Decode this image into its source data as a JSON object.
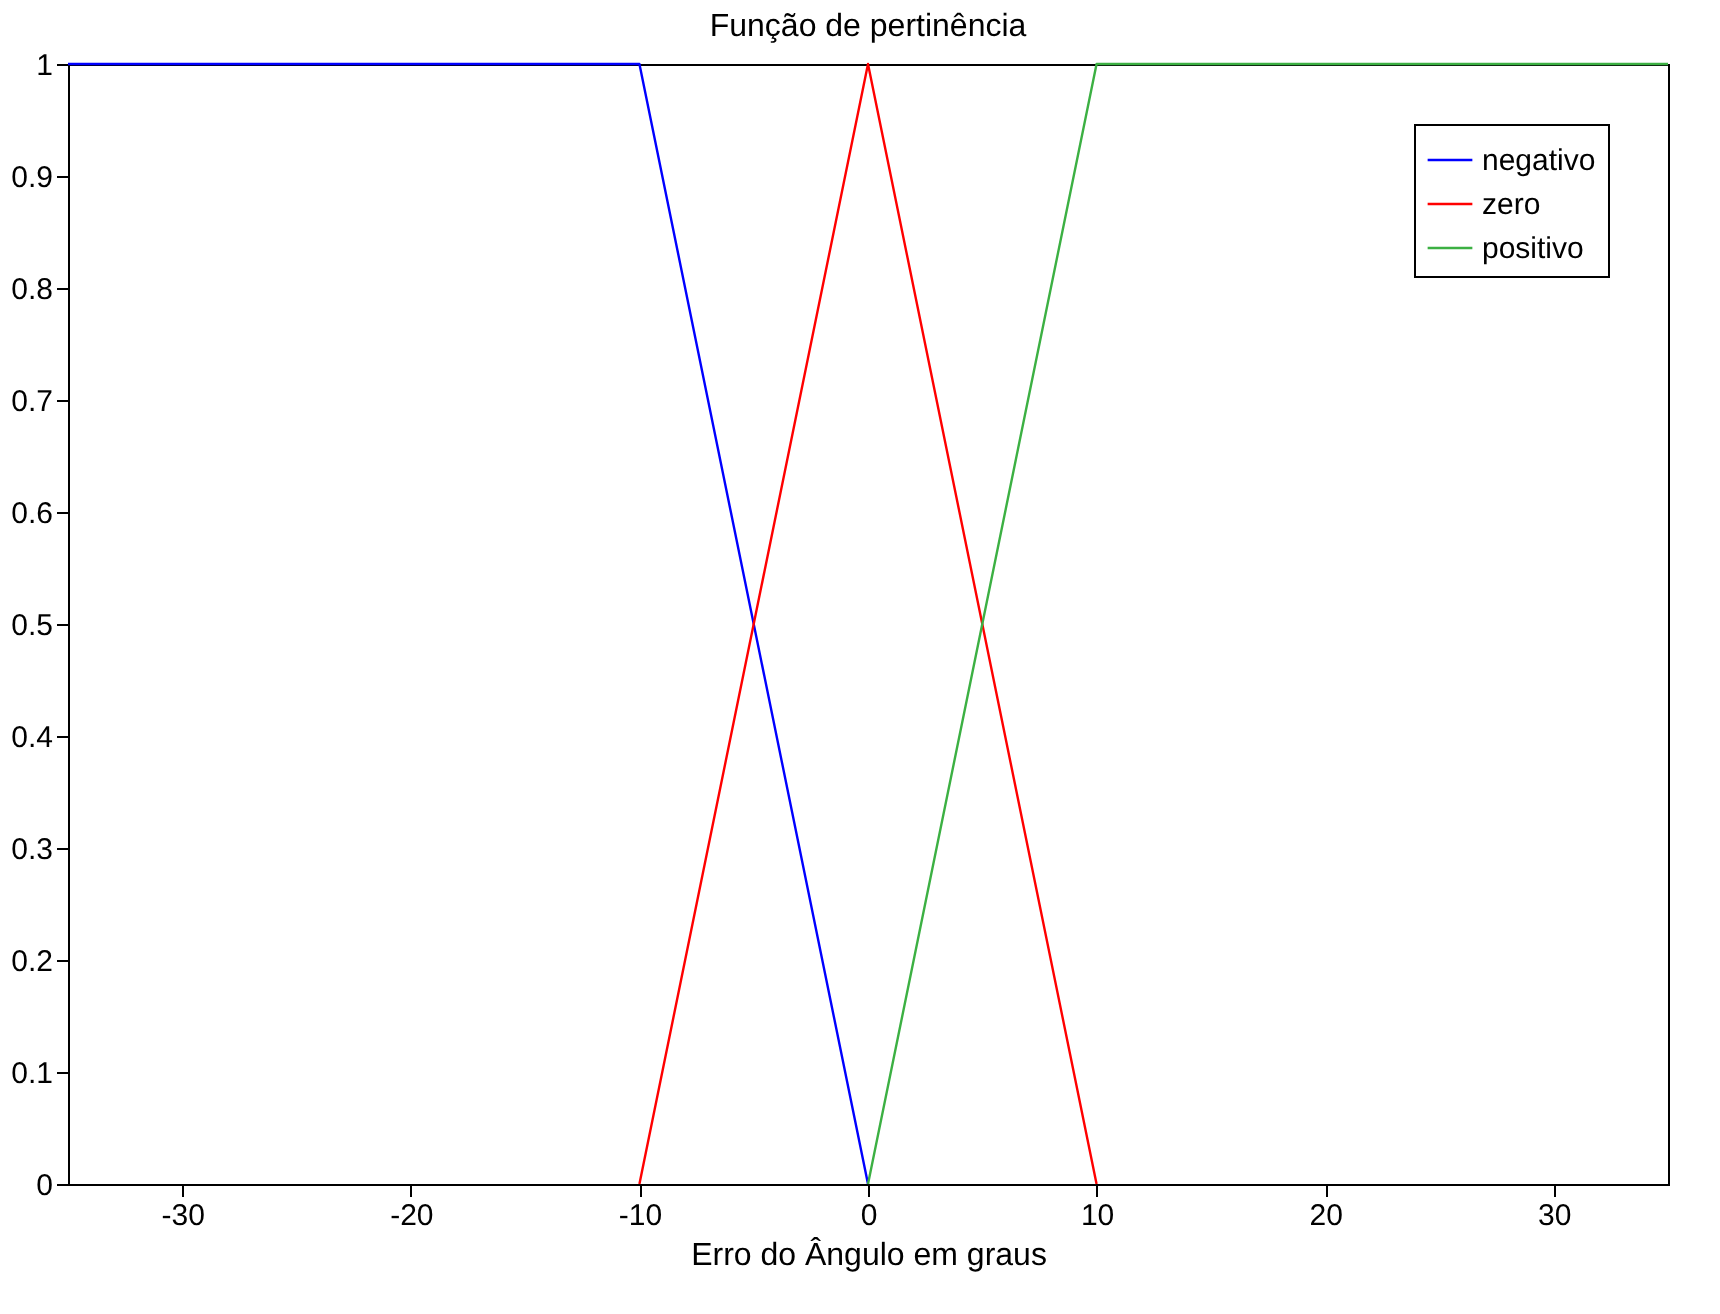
{
  "chart_data": {
    "type": "line",
    "title": "Função de pertinência",
    "xlabel": "Erro do Ângulo em graus",
    "xlim": [
      -35,
      35
    ],
    "xticks": [
      -30,
      -20,
      -10,
      0,
      10,
      20,
      30
    ],
    "ylim": [
      0,
      1
    ],
    "yticks": [
      0,
      0.1,
      0.2,
      0.3,
      0.4,
      0.5,
      0.6,
      0.7,
      0.8,
      0.9,
      1
    ],
    "grid": false,
    "legend": "top right",
    "marker": "none",
    "line_style": "solid",
    "series": [
      {
        "name": "negativo",
        "color": "#0000ff",
        "x": [
          -35,
          -10,
          0
        ],
        "values": [
          1,
          1,
          0
        ]
      },
      {
        "name": "zero",
        "color": "#ff0000",
        "x": [
          -10,
          0,
          10
        ],
        "values": [
          0,
          1,
          0
        ]
      },
      {
        "name": "positivo",
        "color": "#3cb043",
        "x": [
          0,
          10,
          35
        ],
        "values": [
          0,
          1,
          1
        ]
      }
    ]
  }
}
